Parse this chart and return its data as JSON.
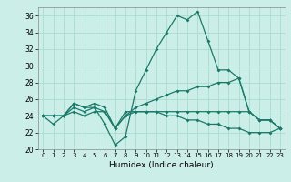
{
  "xlabel": "Humidex (Indice chaleur)",
  "ylabel": "",
  "bg_color": "#cceee8",
  "grid_color": "#aaddcc",
  "line_color": "#1a7a6a",
  "xlim": [
    -0.5,
    23.5
  ],
  "ylim": [
    20,
    37
  ],
  "yticks": [
    20,
    22,
    24,
    26,
    28,
    30,
    32,
    34,
    36
  ],
  "xticks": [
    0,
    1,
    2,
    3,
    4,
    5,
    6,
    7,
    8,
    9,
    10,
    11,
    12,
    13,
    14,
    15,
    16,
    17,
    18,
    19,
    20,
    21,
    22,
    23
  ],
  "series": [
    [
      24.0,
      23.0,
      24.0,
      25.0,
      24.5,
      25.0,
      23.0,
      20.5,
      21.5,
      27.0,
      29.5,
      32.0,
      34.0,
      36.0,
      35.5,
      36.5,
      33.0,
      29.5,
      29.5,
      28.5,
      24.5,
      23.5,
      23.5,
      22.5
    ],
    [
      24.0,
      24.0,
      24.0,
      24.5,
      24.0,
      24.5,
      24.5,
      22.5,
      24.0,
      25.0,
      25.5,
      26.0,
      26.5,
      27.0,
      27.0,
      27.5,
      27.5,
      28.0,
      28.0,
      28.5,
      24.5,
      23.5,
      23.5,
      22.5
    ],
    [
      24.0,
      24.0,
      24.0,
      25.5,
      25.0,
      25.0,
      24.5,
      22.5,
      24.0,
      24.5,
      24.5,
      24.5,
      24.5,
      24.5,
      24.5,
      24.5,
      24.5,
      24.5,
      24.5,
      24.5,
      24.5,
      23.5,
      23.5,
      22.5
    ],
    [
      24.0,
      24.0,
      24.0,
      25.5,
      25.0,
      25.5,
      25.0,
      22.5,
      24.5,
      24.5,
      24.5,
      24.5,
      24.0,
      24.0,
      23.5,
      23.5,
      23.0,
      23.0,
      22.5,
      22.5,
      22.0,
      22.0,
      22.0,
      22.5
    ]
  ]
}
